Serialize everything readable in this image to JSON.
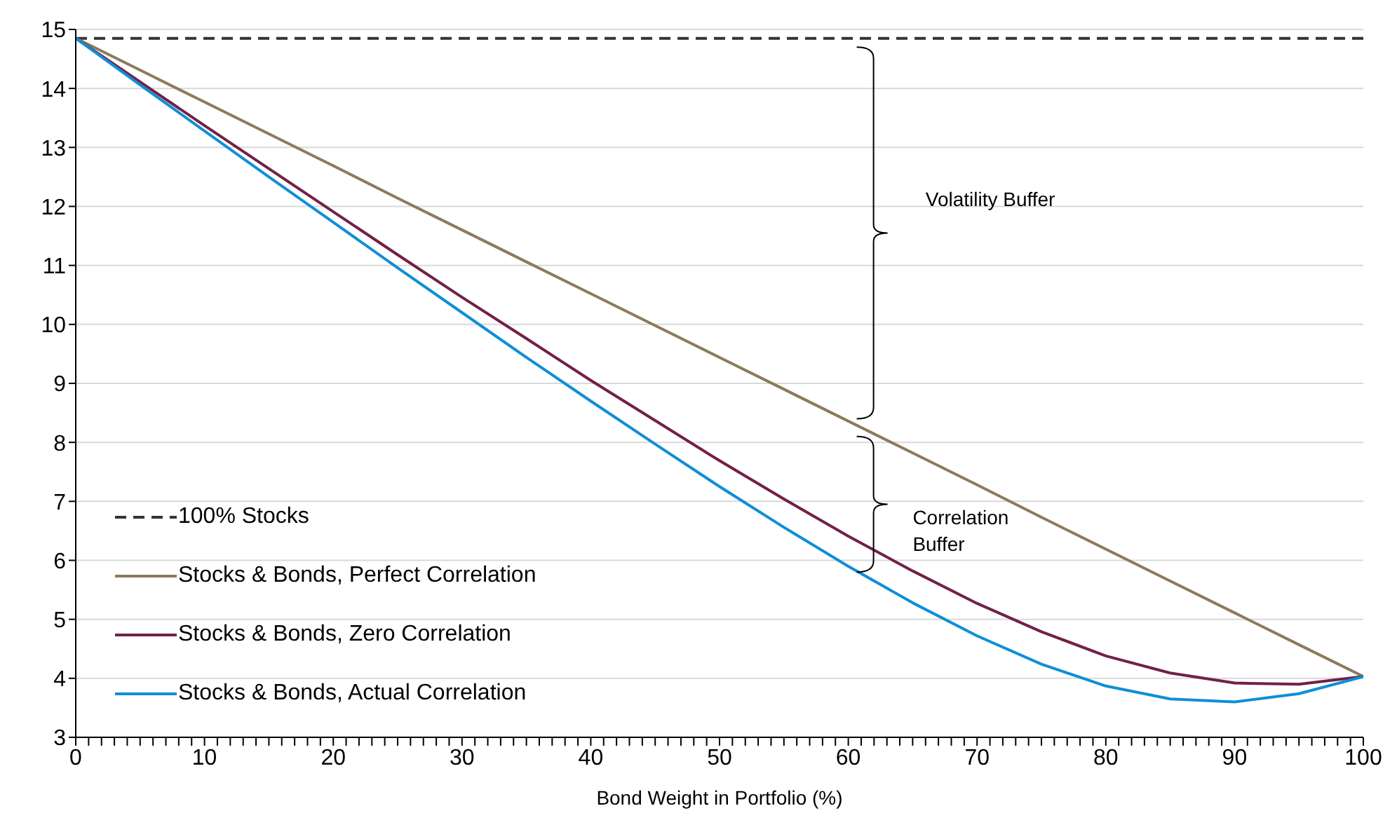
{
  "chart_data": {
    "type": "line",
    "xlabel": "Bond Weight in Portfolio (%)",
    "xlim": [
      0,
      100
    ],
    "ylim": [
      3,
      15
    ],
    "xticks": [
      0,
      {
        "value": 1,
        "label": null
      },
      {
        "value": 2,
        "label": null
      },
      {
        "value": 3,
        "label": null
      },
      {
        "value": 4,
        "label": null
      },
      {
        "value": 5,
        "label": null
      },
      {
        "value": 6,
        "label": null
      },
      {
        "value": 7,
        "label": null
      },
      {
        "value": 8,
        "label": null
      },
      {
        "value": 9,
        "label": null
      },
      10,
      {
        "value": 11,
        "label": null
      },
      {
        "value": 12,
        "label": null
      },
      {
        "value": 13,
        "label": null
      },
      {
        "value": 14,
        "label": null
      },
      {
        "value": 15,
        "label": null
      },
      {
        "value": 16,
        "label": null
      },
      {
        "value": 17,
        "label": null
      },
      {
        "value": 18,
        "label": null
      },
      {
        "value": 19,
        "label": null
      },
      20,
      {
        "value": 21,
        "label": null
      },
      {
        "value": 22,
        "label": null
      },
      {
        "value": 23,
        "label": null
      },
      {
        "value": 24,
        "label": null
      },
      {
        "value": 25,
        "label": null
      },
      {
        "value": 26,
        "label": null
      },
      {
        "value": 27,
        "label": null
      },
      {
        "value": 28,
        "label": null
      },
      {
        "value": 29,
        "label": null
      },
      30,
      {
        "value": 31,
        "label": null
      },
      {
        "value": 32,
        "label": null
      },
      {
        "value": 33,
        "label": null
      },
      {
        "value": 34,
        "label": null
      },
      {
        "value": 35,
        "label": null
      },
      {
        "value": 36,
        "label": null
      },
      {
        "value": 37,
        "label": null
      },
      {
        "value": 38,
        "label": null
      },
      {
        "value": 39,
        "label": null
      },
      40,
      {
        "value": 41,
        "label": null
      },
      {
        "value": 42,
        "label": null
      },
      {
        "value": 43,
        "label": null
      },
      {
        "value": 44,
        "label": null
      },
      {
        "value": 45,
        "label": null
      },
      {
        "value": 46,
        "label": null
      },
      {
        "value": 47,
        "label": null
      },
      {
        "value": 48,
        "label": null
      },
      {
        "value": 49,
        "label": null
      },
      50,
      {
        "value": 51,
        "label": null
      },
      {
        "value": 52,
        "label": null
      },
      {
        "value": 53,
        "label": null
      },
      {
        "value": 54,
        "label": null
      },
      {
        "value": 55,
        "label": null
      },
      {
        "value": 56,
        "label": null
      },
      {
        "value": 57,
        "label": null
      },
      {
        "value": 58,
        "label": null
      },
      {
        "value": 59,
        "label": null
      },
      60,
      {
        "value": 61,
        "label": null
      },
      {
        "value": 62,
        "label": null
      },
      {
        "value": 63,
        "label": null
      },
      {
        "value": 64,
        "label": null
      },
      {
        "value": 65,
        "label": null
      },
      {
        "value": 66,
        "label": null
      },
      {
        "value": 67,
        "label": null
      },
      {
        "value": 68,
        "label": null
      },
      {
        "value": 69,
        "label": null
      },
      70,
      {
        "value": 71,
        "label": null
      },
      {
        "value": 72,
        "label": null
      },
      {
        "value": 73,
        "label": null
      },
      {
        "value": 74,
        "label": null
      },
      {
        "value": 75,
        "label": null
      },
      {
        "value": 76,
        "label": null
      },
      {
        "value": 77,
        "label": null
      },
      {
        "value": 78,
        "label": null
      },
      {
        "value": 79,
        "label": null
      },
      80,
      {
        "value": 81,
        "label": null
      },
      {
        "value": 82,
        "label": null
      },
      {
        "value": 83,
        "label": null
      },
      {
        "value": 84,
        "label": null
      },
      {
        "value": 85,
        "label": null
      },
      {
        "value": 86,
        "label": null
      },
      {
        "value": 87,
        "label": null
      },
      {
        "value": 88,
        "label": null
      },
      {
        "value": 89,
        "label": null
      },
      90,
      {
        "value": 91,
        "label": null
      },
      {
        "value": 92,
        "label": null
      },
      {
        "value": 93,
        "label": null
      },
      {
        "value": 94,
        "label": null
      },
      {
        "value": 95,
        "label": null
      },
      {
        "value": 96,
        "label": null
      },
      {
        "value": 97,
        "label": null
      },
      {
        "value": 98,
        "label": null
      },
      {
        "value": 99,
        "label": null
      },
      100
    ],
    "yticks": [
      3,
      4,
      5,
      6,
      7,
      8,
      9,
      10,
      11,
      12,
      13,
      14,
      15
    ],
    "grid": "y",
    "legend": "bottom left",
    "marker": "none",
    "x": [
      0,
      5,
      10,
      15,
      20,
      25,
      30,
      35,
      40,
      45,
      50,
      55,
      60,
      65,
      70,
      75,
      80,
      85,
      90,
      95,
      100
    ],
    "series": [
      {
        "name": "100% Stocks",
        "color": "#333333",
        "line_style": "dashed",
        "values": [
          14.85,
          14.85,
          14.85,
          14.85,
          14.85,
          14.85,
          14.85,
          14.85,
          14.85,
          14.85,
          14.85,
          14.85,
          14.85,
          14.85,
          14.85,
          14.85,
          14.85,
          14.85,
          14.85,
          14.85,
          14.85
        ]
      },
      {
        "name": "Stocks & Bonds, Perfect Correlation",
        "color": "#8c7b5b",
        "line_style": "solid",
        "values": [
          14.85,
          14.31,
          13.77,
          13.23,
          12.69,
          12.14,
          11.6,
          11.06,
          10.52,
          9.98,
          9.44,
          8.9,
          8.36,
          7.82,
          7.28,
          6.73,
          6.19,
          5.65,
          5.11,
          4.57,
          4.03
        ]
      },
      {
        "name": "Stocks & Bonds, Zero Correlation",
        "color": "#722048",
        "line_style": "solid",
        "values": [
          14.85,
          14.11,
          13.37,
          12.64,
          11.91,
          11.18,
          10.46,
          9.76,
          9.05,
          8.37,
          7.69,
          7.04,
          6.41,
          5.82,
          5.27,
          4.79,
          4.38,
          4.09,
          3.92,
          3.9,
          4.03
        ]
      },
      {
        "name": "Stocks & Bonds, Actual Correlation",
        "color": "#0f8fd6",
        "line_style": "solid",
        "values": [
          14.85,
          14.06,
          13.28,
          12.5,
          11.73,
          10.96,
          10.2,
          9.44,
          8.7,
          7.97,
          7.25,
          6.56,
          5.9,
          5.28,
          4.72,
          4.24,
          3.87,
          3.65,
          3.6,
          3.74,
          4.03
        ]
      }
    ],
    "annotations": [
      "Volatility Buffer",
      "Correlation Buffer"
    ]
  }
}
